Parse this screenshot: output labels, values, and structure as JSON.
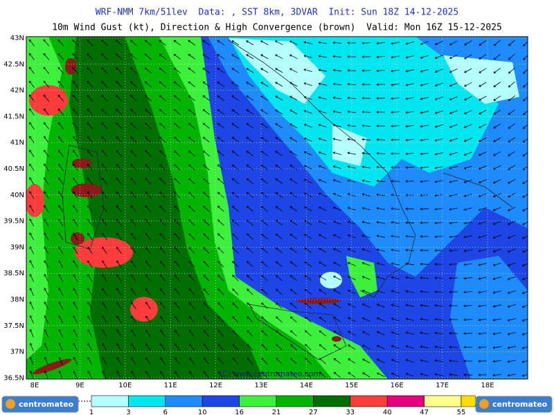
{
  "header": {
    "line1": "WRF-NMM 7km/51lev  Data: , SST 8km, 3DVAR  Init: Sun 18Z 14-12-2025",
    "line2": "10m Wind Gust (kt), Direction & High Convergence (brown)  Valid: Mon 16Z 15-12-2025"
  },
  "map": {
    "lat_labels": [
      "43N",
      "42.5N",
      "42N",
      "41.5N",
      "41N",
      "40.5N",
      "40N",
      "39.5N",
      "39N",
      "38.5N",
      "38N",
      "37.5N",
      "37N",
      "36.5N"
    ],
    "lon_labels": [
      "8E",
      "9E",
      "10E",
      "11E",
      "12E",
      "13E",
      "14E",
      "15E",
      "16E",
      "17E",
      "18E"
    ],
    "watermark": "(C) www.centromateo.com"
  },
  "legend": {
    "values": [
      1,
      3,
      6,
      10,
      16,
      21,
      27,
      33,
      40,
      47,
      55
    ],
    "colors": [
      "#b4ffff",
      "#00e6f0",
      "#1e8cff",
      "#1e46e6",
      "#3cf03c",
      "#00b400",
      "#006e00",
      "#ff3c3c",
      "#e6007d",
      "#ffff8c",
      "#ffdc00"
    ]
  },
  "footer": {
    "logo_left": "centromateo",
    "logo_right": "centromateo"
  }
}
